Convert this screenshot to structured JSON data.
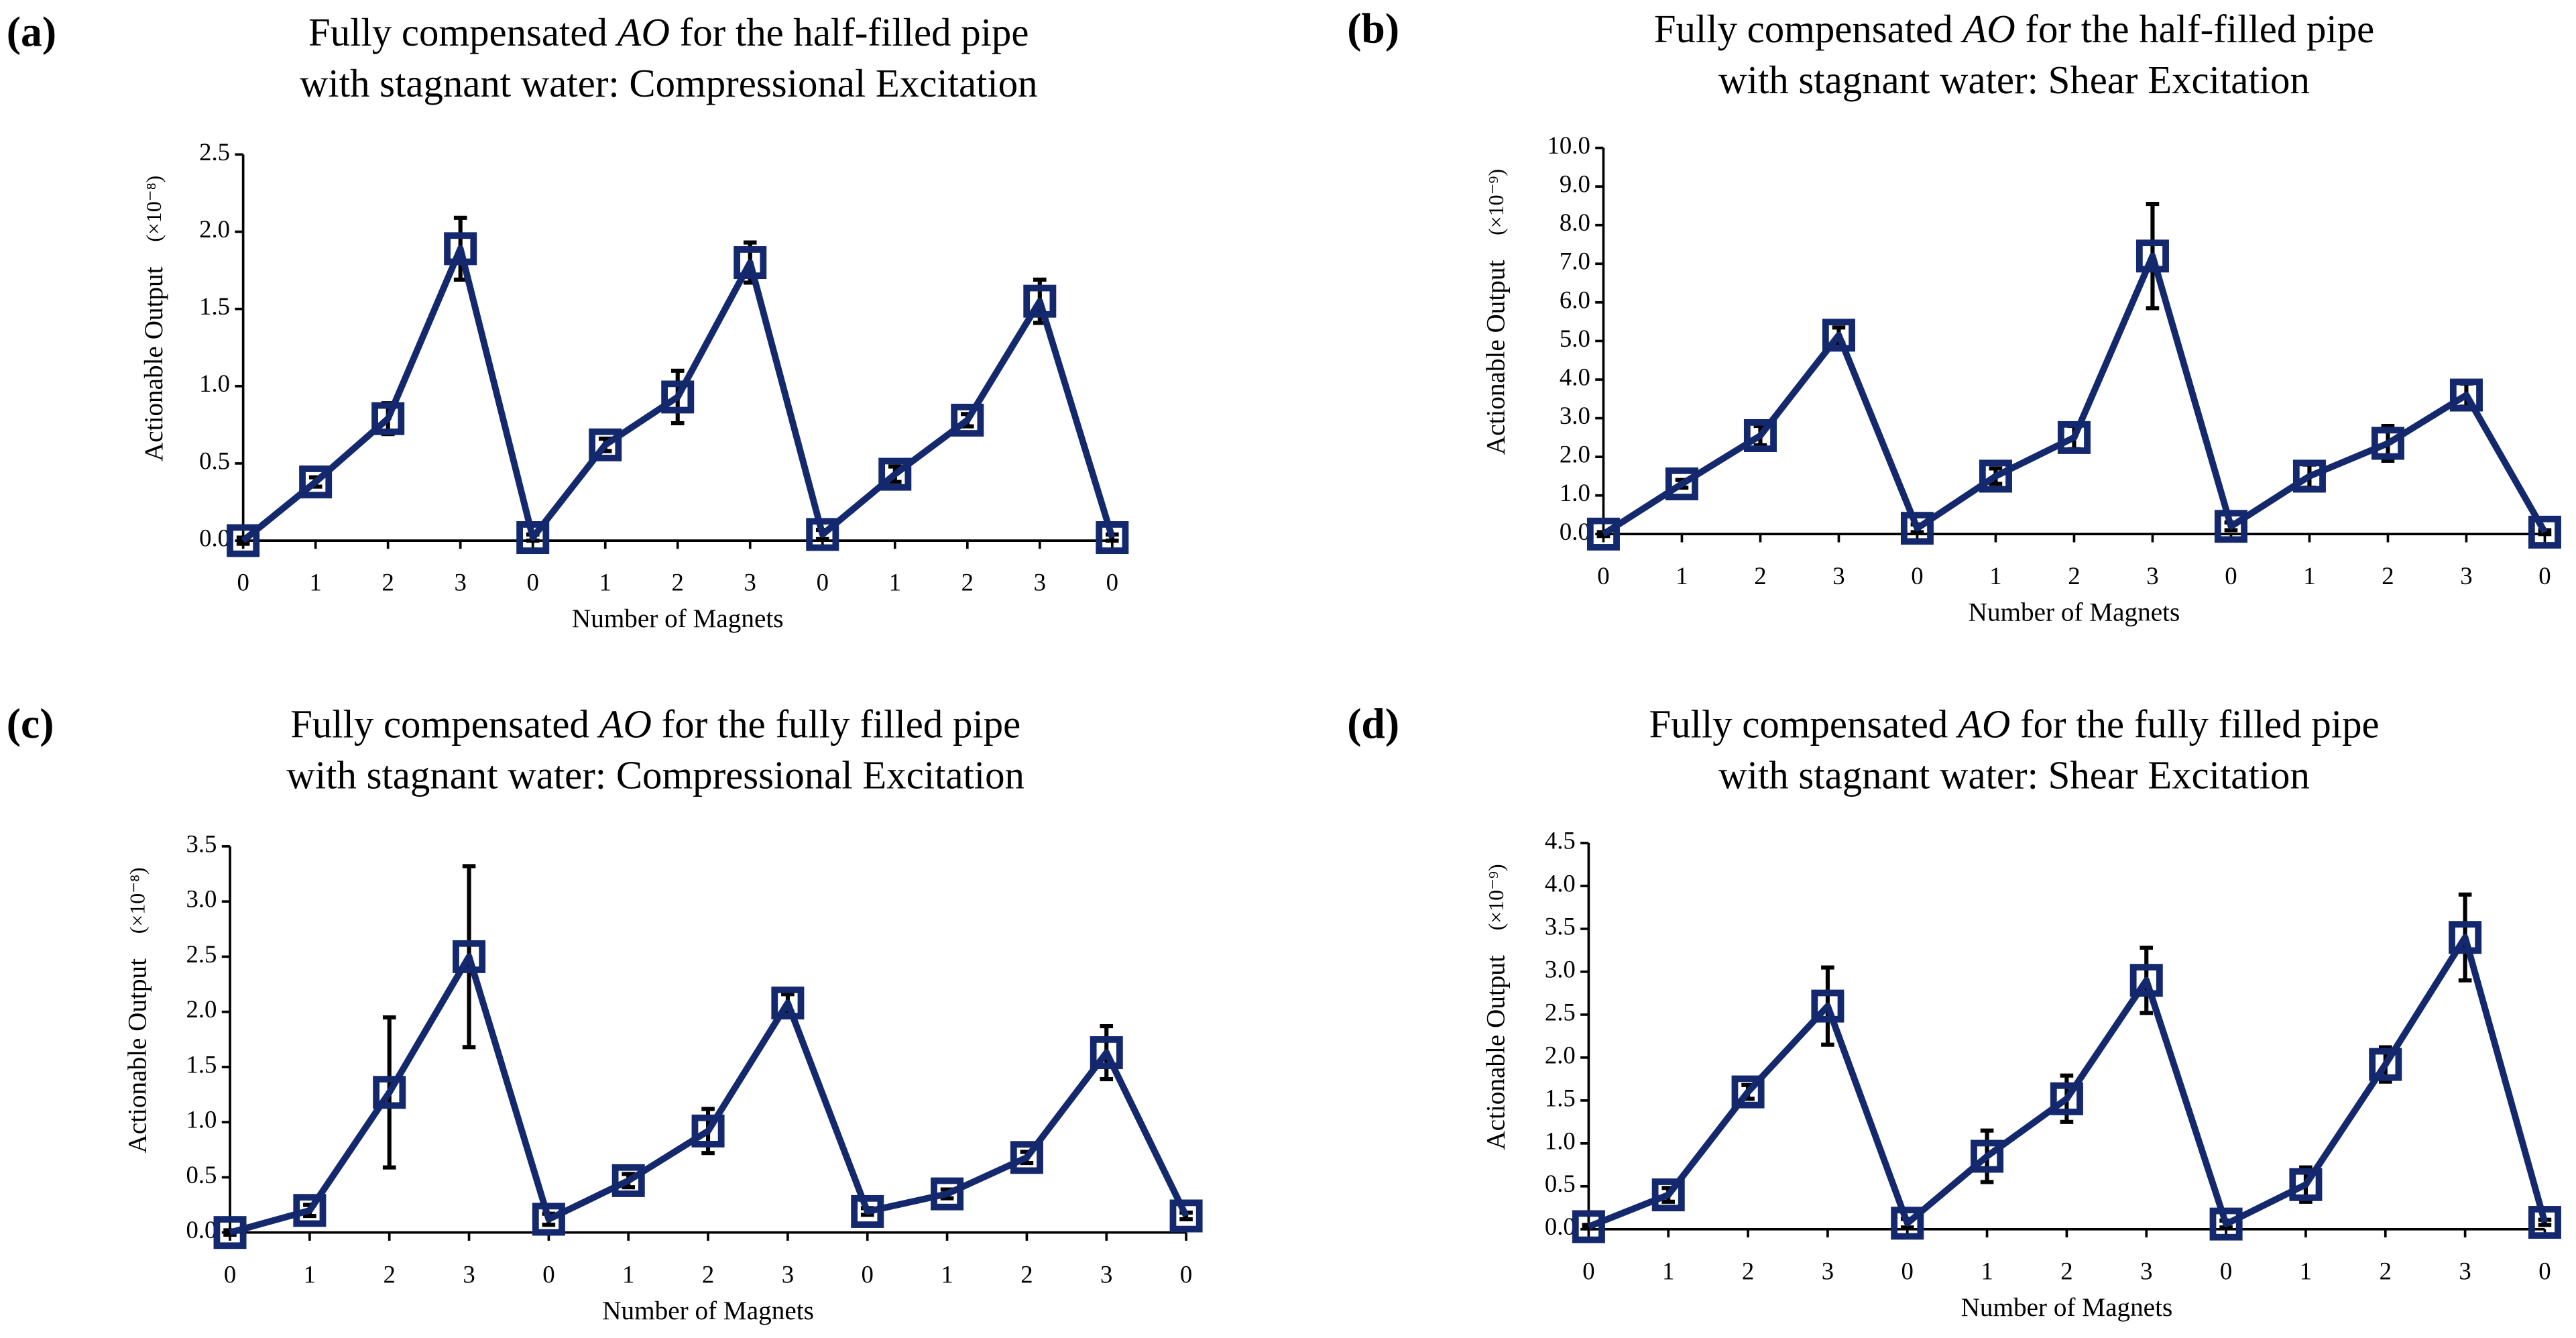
{
  "chart_data": [
    {
      "type": "line",
      "panel_label": "(a)",
      "title": [
        "Fully compensated AO for the half-filled pipe",
        "with stagnant water: Compressional Excitation"
      ],
      "title_italic": "AO",
      "xlabel": "Number of Magnets",
      "ylabel": "Actionable Output",
      "y_unit": "(×10⁻⁸)",
      "categories": [
        "0",
        "1",
        "2",
        "3",
        "0",
        "1",
        "2",
        "3",
        "0",
        "1",
        "2",
        "3",
        "0"
      ],
      "series": [
        {
          "color": "#14286e",
          "values": [
            0,
            0.38,
            0.79,
            1.89,
            0.02,
            0.62,
            0.93,
            1.8,
            0.04,
            0.43,
            0.78,
            1.55,
            0.02
          ],
          "errors": [
            0.02,
            0.03,
            0.1,
            0.2,
            0.02,
            0.04,
            0.17,
            0.13,
            0.03,
            0.05,
            0.04,
            0.14,
            0.02
          ]
        }
      ],
      "error_color": "#000000",
      "ylim": [
        0,
        2.5
      ],
      "yticks": [
        {
          "value": 0,
          "label": "0.0"
        },
        0.5,
        {
          "value": 1,
          "label": "1.0"
        },
        1.5,
        {
          "value": 2,
          "label": "2.0"
        },
        2.5
      ]
    },
    {
      "type": "line",
      "panel_label": "(b)",
      "title": [
        "Fully compensated AO for the half-filled pipe",
        "with stagnant water: Shear Excitation"
      ],
      "title_italic": "AO",
      "xlabel": "Number of Magnets",
      "ylabel": "Actionable Output",
      "y_unit": "(×10⁻⁹)",
      "categories": [
        "0",
        "1",
        "2",
        "3",
        "0",
        "1",
        "2",
        "3",
        "0",
        "1",
        "2",
        "3",
        "0"
      ],
      "series": [
        {
          "color": "#14286e",
          "values": [
            0,
            1.3,
            2.55,
            5.15,
            0.15,
            1.5,
            2.5,
            7.2,
            0.2,
            1.5,
            2.35,
            3.6,
            0.05
          ],
          "errors": [
            0.05,
            0.1,
            0.25,
            0.2,
            0.1,
            0.2,
            0.3,
            1.35,
            0.1,
            0.3,
            0.45,
            0.3,
            0.05
          ]
        }
      ],
      "error_color": "#000000",
      "ylim": [
        0,
        10
      ],
      "yticks": [
        {
          "value": 0,
          "label": "0.0"
        },
        {
          "value": 1,
          "label": "1.0"
        },
        {
          "value": 2,
          "label": "2.0"
        },
        {
          "value": 3,
          "label": "3.0"
        },
        {
          "value": 4,
          "label": "4.0"
        },
        {
          "value": 5,
          "label": "5.0"
        },
        {
          "value": 6,
          "label": "6.0"
        },
        {
          "value": 7,
          "label": "7.0"
        },
        {
          "value": 8,
          "label": "8.0"
        },
        {
          "value": 9,
          "label": "9.0"
        },
        {
          "value": 10,
          "label": "10.0"
        }
      ]
    },
    {
      "type": "line",
      "panel_label": "(c)",
      "title": [
        "Fully compensated AO for the fully filled pipe",
        "with stagnant water: Compressional Excitation"
      ],
      "title_italic": "AO",
      "xlabel": "Number of Magnets",
      "ylabel": "Actionable Output",
      "y_unit": "(×10⁻⁸)",
      "categories": [
        "0",
        "1",
        "2",
        "3",
        "0",
        "1",
        "2",
        "3",
        "0",
        "1",
        "2",
        "3",
        "0"
      ],
      "series": [
        {
          "color": "#14286e",
          "values": [
            0,
            0.2,
            1.27,
            2.5,
            0.12,
            0.47,
            0.92,
            2.08,
            0.19,
            0.35,
            0.68,
            1.63,
            0.15
          ],
          "errors": [
            0.02,
            0.05,
            0.68,
            0.82,
            0.05,
            0.06,
            0.2,
            0.08,
            0.03,
            0.04,
            0.05,
            0.24,
            0.03
          ]
        }
      ],
      "error_color": "#000000",
      "ylim": [
        0,
        3.5
      ],
      "yticks": [
        {
          "value": 0,
          "label": "0.0"
        },
        0.5,
        {
          "value": 1,
          "label": "1.0"
        },
        1.5,
        {
          "value": 2,
          "label": "2.0"
        },
        2.5,
        {
          "value": 3,
          "label": "3.0"
        },
        3.5
      ]
    },
    {
      "type": "line",
      "panel_label": "(d)",
      "title": [
        "Fully compensated AO for the fully filled pipe",
        "with stagnant water: Shear Excitation"
      ],
      "title_italic": "AO",
      "xlabel": "Number of Magnets",
      "ylabel": "Actionable Output",
      "y_unit": "(×10⁻⁹)",
      "categories": [
        "0",
        "1",
        "2",
        "3",
        "0",
        "1",
        "2",
        "3",
        "0",
        "1",
        "2",
        "3",
        "0"
      ],
      "series": [
        {
          "color": "#14286e",
          "values": [
            0.03,
            0.4,
            1.6,
            2.6,
            0.07,
            0.85,
            1.52,
            2.9,
            0.06,
            0.52,
            1.92,
            3.4,
            0.08
          ],
          "errors": [
            0.02,
            0.08,
            0.08,
            0.45,
            0.05,
            0.3,
            0.27,
            0.38,
            0.04,
            0.2,
            0.2,
            0.5,
            0.03
          ]
        }
      ],
      "error_color": "#000000",
      "ylim": [
        0,
        4.5
      ],
      "yticks": [
        {
          "value": 0,
          "label": "0.0"
        },
        0.5,
        {
          "value": 1,
          "label": "1.0"
        },
        1.5,
        {
          "value": 2,
          "label": "2.0"
        },
        2.5,
        {
          "value": 3,
          "label": "3.0"
        },
        3.5,
        {
          "value": 4,
          "label": "4.0"
        },
        4.5
      ]
    }
  ]
}
